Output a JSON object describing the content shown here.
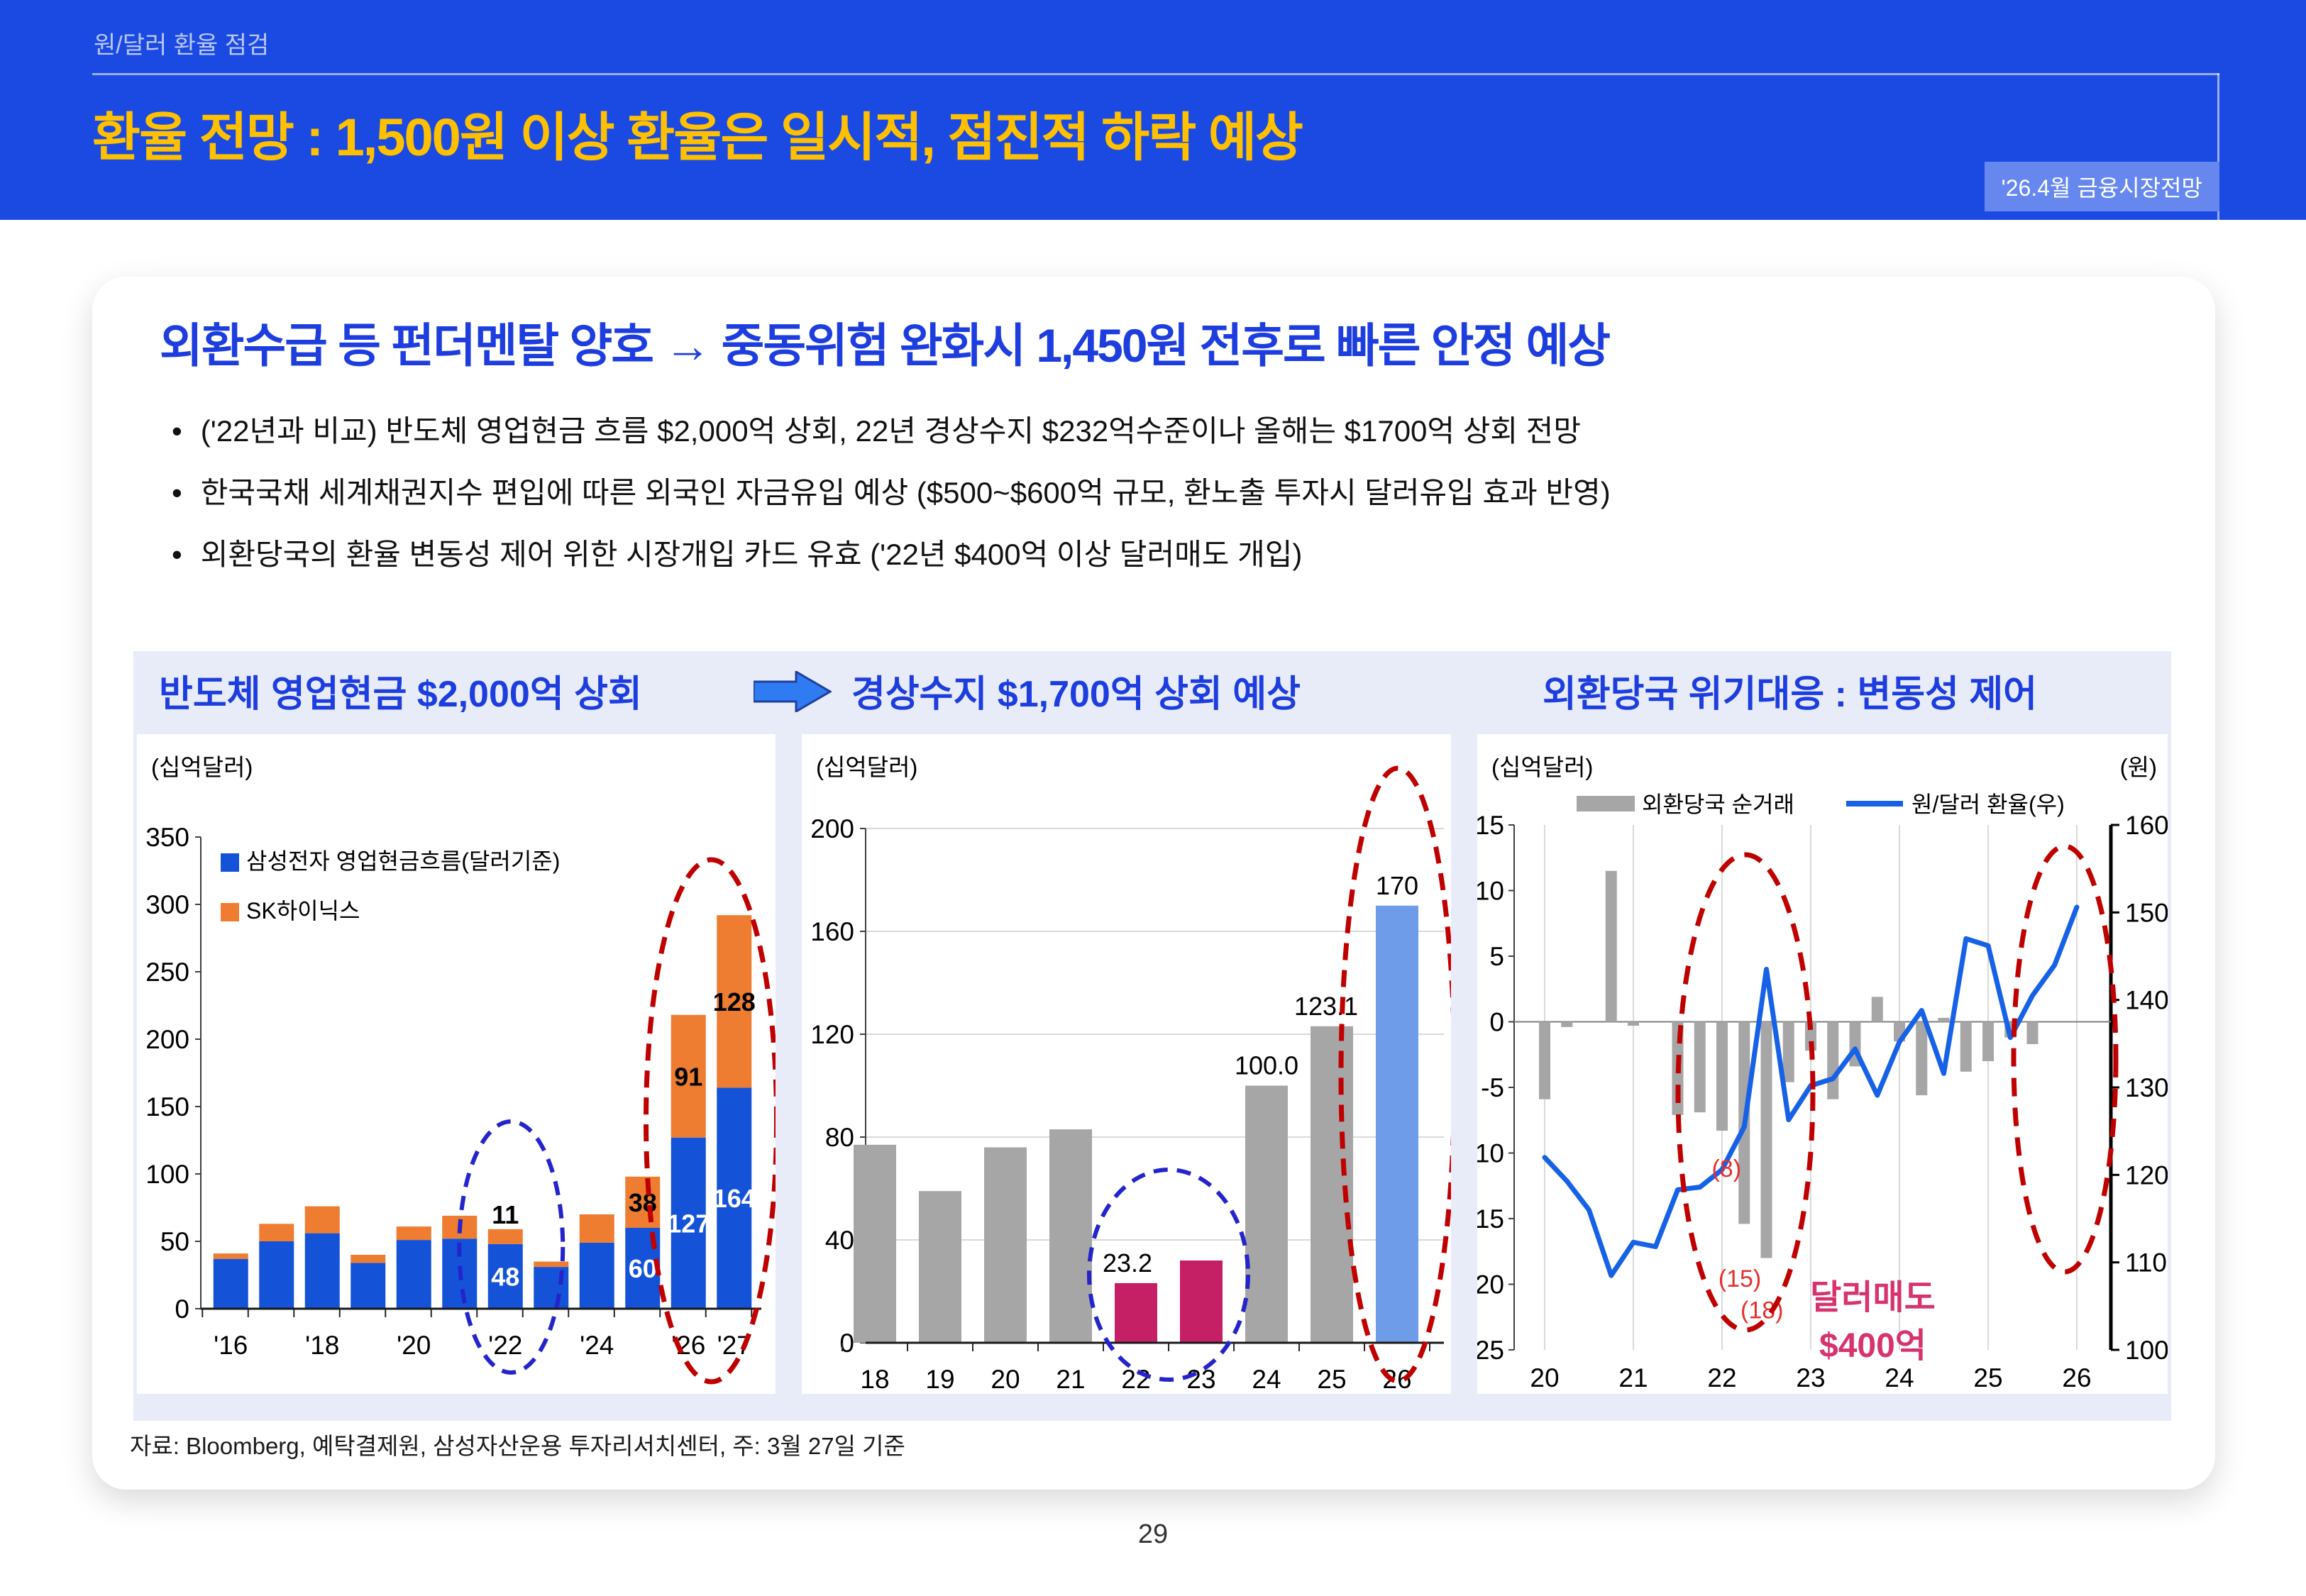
{
  "page": {
    "number": "29"
  },
  "header": {
    "eyebrow": "원/달러 환율 점검",
    "title": "환율 전망 : 1,500원 이상 환율은 일시적, 점진적 하락 예상",
    "badge": "'26.4월 금융시장전망",
    "colors": {
      "bg": "#1b4ae2",
      "title": "#ffc000",
      "eyebrow": "#b9c7f5",
      "badge_bg": "#6688ee"
    }
  },
  "content": {
    "headline": "외환수급 등 펀더멘탈 양호 → 중동위험 완화시 1,450원 전후로 빠른 안정 예상",
    "bullets": [
      "('22년과 비교) 반도체 영업현금 흐름 $2,000억 상회, 22년 경상수지 $232억수준이나 올해는 $1700억 상회 전망",
      "한국국채 세계채권지수 편입에 따른 외국인 자금유입 예상 ($500~$600억 규모, 환노출 투자시 달러유입 효과 반영)",
      "외환당국의 환율 변동성 제어 위한 시장개입 카드 유효 ('22년 $400억 이상 달러매도 개입)"
    ],
    "section_titles": [
      "반도체 영업현금 $2,000억 상회",
      "경상수지 $1,700억 상회 예상",
      "외환당국 위기대응 : 변동성 제어"
    ],
    "footnote": "자료: Bloomberg, 예탁결제원,  삼성자산운용 투자리서치센터, 주: 3월 27일 기준"
  },
  "chart_data": [
    {
      "id": "semiconductor-operating-cashflow",
      "type": "bar",
      "stacked": true,
      "unit_label": "(십억달러)",
      "categories": [
        "'16",
        "'17",
        "'18",
        "'19",
        "'20",
        "'21",
        "'22",
        "'23",
        "'24",
        "'25",
        "'26",
        "'27"
      ],
      "series": [
        {
          "name": "삼성전자 영업현금흐름(달러기준)",
          "color": "#1453d8",
          "values": [
            37,
            50,
            56,
            34,
            51,
            52,
            48,
            31,
            49,
            60,
            127,
            164
          ]
        },
        {
          "name": "SK하이닉스",
          "color": "#ee7d31",
          "values": [
            4,
            13,
            20,
            6,
            10,
            17,
            11,
            4,
            21,
            38,
            91,
            128
          ]
        }
      ],
      "bar_labels": [
        {
          "series": 0,
          "index": 6,
          "text": "48",
          "color": "#ffffff",
          "mode": "mid"
        },
        {
          "series": 1,
          "index": 6,
          "text": "11",
          "color": "#000000",
          "mode": "above"
        },
        {
          "series": 0,
          "index": 9,
          "text": "60",
          "color": "#ffffff",
          "mode": "mid"
        },
        {
          "series": 1,
          "index": 9,
          "text": "38",
          "color": "#000000",
          "mode": "mid"
        },
        {
          "series": 0,
          "index": 10,
          "text": "127",
          "color": "#ffffff",
          "mode": "mid"
        },
        {
          "series": 1,
          "index": 10,
          "text": "91",
          "color": "#000000",
          "mode": "mid"
        },
        {
          "series": 0,
          "index": 11,
          "text": "164",
          "color": "#ffffff",
          "mode": "mid"
        },
        {
          "series": 1,
          "index": 11,
          "text": "128",
          "color": "#000000",
          "mode": "mid"
        }
      ],
      "ylim": [
        0,
        350
      ],
      "yticks": [
        0,
        50,
        100,
        150,
        200,
        250,
        300,
        350
      ],
      "x_labels_shown": [
        {
          "index": 0,
          "text": "'16"
        },
        {
          "index": 2,
          "text": "'18"
        },
        {
          "index": 4,
          "text": "'20"
        },
        {
          "index": 6,
          "text": "'22"
        },
        {
          "index": 8,
          "text": "'24"
        },
        {
          "index": 10,
          "text": "'26"
        },
        {
          "index": 11,
          "text": "'27"
        }
      ],
      "highlights": [
        {
          "target": "'22",
          "color": "#2424cc"
        },
        {
          "target": "'26-'27",
          "color": "#c00000"
        }
      ]
    },
    {
      "id": "current-account-balance",
      "type": "bar",
      "unit_label": "(십억달러)",
      "categories": [
        "18",
        "19",
        "20",
        "21",
        "22",
        "23",
        "24",
        "25",
        "26"
      ],
      "values": [
        77,
        59,
        76,
        83,
        23.2,
        32,
        100,
        123.1,
        170
      ],
      "bar_colors": [
        "#a6a6a6",
        "#a6a6a6",
        "#a6a6a6",
        "#a6a6a6",
        "#c51f66",
        "#c51f66",
        "#a6a6a6",
        "#a6a6a6",
        "#6f9ce8"
      ],
      "data_labels": [
        {
          "index": 4,
          "text": "23.2",
          "dx": -12
        },
        {
          "index": 6,
          "text": "100.0",
          "dx": 0
        },
        {
          "index": 7,
          "text": "123.1",
          "dx": -8
        },
        {
          "index": 8,
          "text": "170",
          "dx": 0
        }
      ],
      "ylim": [
        0,
        200
      ],
      "yticks": [
        0,
        40,
        80,
        120,
        160,
        200
      ],
      "highlights": [
        {
          "target": "22-23",
          "color": "#2424cc"
        },
        {
          "target": "26",
          "color": "#c00000"
        }
      ]
    },
    {
      "id": "fx-authority-net-trading",
      "type": "combo",
      "unit_label_left": "(십억달러)",
      "unit_label_right": "(원)",
      "legend": [
        {
          "label": "외환당국 순거래",
          "swatch": "bar",
          "color": "#a6a6a6"
        },
        {
          "label": "원/달러 환율(우)",
          "swatch": "line",
          "color": "#1661e6"
        }
      ],
      "left_ylim": [
        -25,
        15
      ],
      "left_yticks": [
        15,
        10,
        5,
        0,
        -5,
        -10,
        -15,
        -20,
        -25
      ],
      "right_ylim": [
        1000,
        1600
      ],
      "right_yticks": [
        1600,
        1500,
        1400,
        1300,
        1200,
        1100,
        1000
      ],
      "x_ticks": [
        "20",
        "21",
        "22",
        "23",
        "24",
        "25",
        "26"
      ],
      "bars": [
        [
          20.0,
          -5.9
        ],
        [
          20.25,
          -0.4
        ],
        [
          20.75,
          11.5
        ],
        [
          21.0,
          -0.3
        ],
        [
          21.5,
          -7.1
        ],
        [
          21.75,
          -6.9
        ],
        [
          22.0,
          -8.3
        ],
        [
          22.25,
          -15.4
        ],
        [
          22.5,
          -18.0
        ],
        [
          22.75,
          -4.6
        ],
        [
          23.0,
          -2.2
        ],
        [
          23.25,
          -5.9
        ],
        [
          23.5,
          -3.4
        ],
        [
          23.75,
          1.9
        ],
        [
          24.0,
          -1.5
        ],
        [
          24.25,
          -5.6
        ],
        [
          24.5,
          0.3
        ],
        [
          24.75,
          -3.8
        ],
        [
          25.0,
          -3.0
        ],
        [
          25.25,
          -1.2
        ],
        [
          25.5,
          -1.7
        ]
      ],
      "line": [
        [
          20.0,
          1220
        ],
        [
          20.25,
          1193
        ],
        [
          20.5,
          1160
        ],
        [
          20.75,
          1085
        ],
        [
          21.0,
          1123
        ],
        [
          21.25,
          1118
        ],
        [
          21.5,
          1183
        ],
        [
          21.75,
          1186
        ],
        [
          22.0,
          1206
        ],
        [
          22.25,
          1255
        ],
        [
          22.5,
          1435
        ],
        [
          22.75,
          1263
        ],
        [
          23.0,
          1302
        ],
        [
          23.25,
          1310
        ],
        [
          23.5,
          1344
        ],
        [
          23.75,
          1291
        ],
        [
          24.0,
          1352
        ],
        [
          24.25,
          1388
        ],
        [
          24.5,
          1316
        ],
        [
          24.75,
          1470
        ],
        [
          25.0,
          1462
        ],
        [
          25.25,
          1357
        ],
        [
          25.5,
          1405
        ],
        [
          25.75,
          1440
        ],
        [
          26.0,
          1506
        ]
      ],
      "red_labels": [
        {
          "text": "(8)",
          "t": 22.05,
          "v": -11.8
        },
        {
          "text": "(15)",
          "t": 22.2,
          "v": -20.2
        },
        {
          "text": "(18)",
          "t": 22.45,
          "v": -22.6
        }
      ],
      "red_label_color": "#e53030",
      "callout": {
        "lines": [
          "달러매도",
          "$400억"
        ],
        "color": "#d6336f",
        "t": 23.7
      },
      "highlights": [
        {
          "target": "2022",
          "color": "#c00000"
        },
        {
          "target": "2026",
          "color": "#c00000"
        }
      ]
    }
  ]
}
